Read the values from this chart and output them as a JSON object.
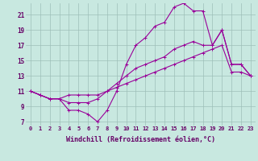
{
  "bg_color": "#c8e8e0",
  "line_color": "#990099",
  "grid_color": "#9dbfb8",
  "xlabel": "Windchill (Refroidissement éolien,°C)",
  "line1_y": [
    11.0,
    10.5,
    10.0,
    10.0,
    8.5,
    8.5,
    8.0,
    7.0,
    8.5,
    11.0,
    14.5,
    17.0,
    18.0,
    19.5,
    20.0,
    22.0,
    22.5,
    21.5,
    21.5,
    17.0,
    19.0,
    14.5,
    14.5,
    13.0
  ],
  "line2_y": [
    11.0,
    10.5,
    10.0,
    10.0,
    9.5,
    9.5,
    9.5,
    10.0,
    11.0,
    12.0,
    13.0,
    14.0,
    14.5,
    15.0,
    15.5,
    16.5,
    17.0,
    17.5,
    17.0,
    17.0,
    19.0,
    14.5,
    14.5,
    13.0
  ],
  "line3_y": [
    11.0,
    10.5,
    10.0,
    10.0,
    10.5,
    10.5,
    10.5,
    10.5,
    11.0,
    11.5,
    12.0,
    12.5,
    13.0,
    13.5,
    14.0,
    14.5,
    15.0,
    15.5,
    16.0,
    16.5,
    17.0,
    13.5,
    13.5,
    13.0
  ],
  "xlim_lo": -0.5,
  "xlim_hi": 23.5,
  "ylim_lo": 6.5,
  "ylim_hi": 22.5,
  "xticks": [
    0,
    1,
    2,
    3,
    4,
    5,
    6,
    7,
    8,
    9,
    10,
    11,
    12,
    13,
    14,
    15,
    16,
    17,
    18,
    19,
    20,
    21,
    22,
    23
  ],
  "yticks": [
    7,
    9,
    11,
    13,
    15,
    17,
    19,
    21
  ],
  "tick_color": "#660066",
  "tick_fontsize": 5.0,
  "xlabel_fontsize": 6.0,
  "lw": 0.8,
  "marker_size": 2.5
}
